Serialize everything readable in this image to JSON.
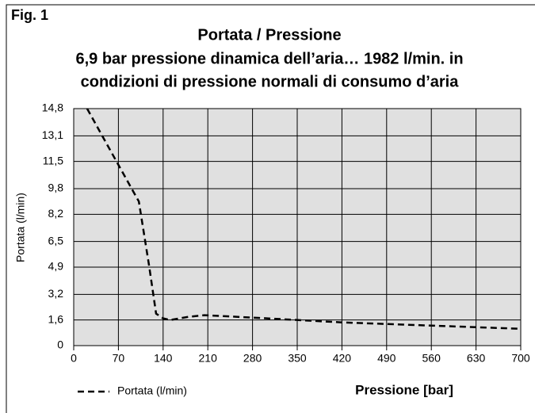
{
  "chart_data": {
    "type": "line",
    "figure_label": "Fig. 1",
    "title": "Portata / Pressione",
    "subtitle": [
      "6,9 bar pressione dinamica dell’aria… 1982 l/min. in",
      "condizioni di pressione normali di consumo d’aria"
    ],
    "x_label": "Pressione [bar]",
    "y_label": "Portata (l/min)",
    "x": [
      21,
      60,
      102,
      118,
      129,
      140,
      151,
      180,
      205,
      280,
      350,
      420,
      490,
      560,
      630,
      700
    ],
    "series": [
      {
        "name": "Portata (l/min)",
        "color": "#000000",
        "dashed": true,
        "values": [
          14.8,
          12.0,
          9.0,
          5.0,
          2.0,
          1.7,
          1.6,
          1.8,
          1.9,
          1.75,
          1.6,
          1.45,
          1.35,
          1.25,
          1.15,
          1.05
        ]
      }
    ],
    "xlim": [
      0,
      700
    ],
    "xticks": [
      0,
      70,
      140,
      210,
      280,
      350,
      420,
      490,
      560,
      630,
      700
    ],
    "ylim": [
      0,
      14.8
    ],
    "yticks": [
      0,
      {
        "value": 1.6,
        "label": "1,6"
      },
      {
        "value": 3.2,
        "label": "3,2"
      },
      {
        "value": 4.9,
        "label": "4,9"
      },
      {
        "value": 6.5,
        "label": "6,5"
      },
      {
        "value": 8.2,
        "label": "8,2"
      },
      {
        "value": 9.8,
        "label": "9,8"
      },
      {
        "value": 11.5,
        "label": "11,5"
      },
      {
        "value": 13.1,
        "label": "13,1"
      },
      {
        "value": 14.8,
        "label": "14,8"
      }
    ],
    "grid": true,
    "legend": "bottom-left",
    "plot_background": "#e0e0e0"
  }
}
